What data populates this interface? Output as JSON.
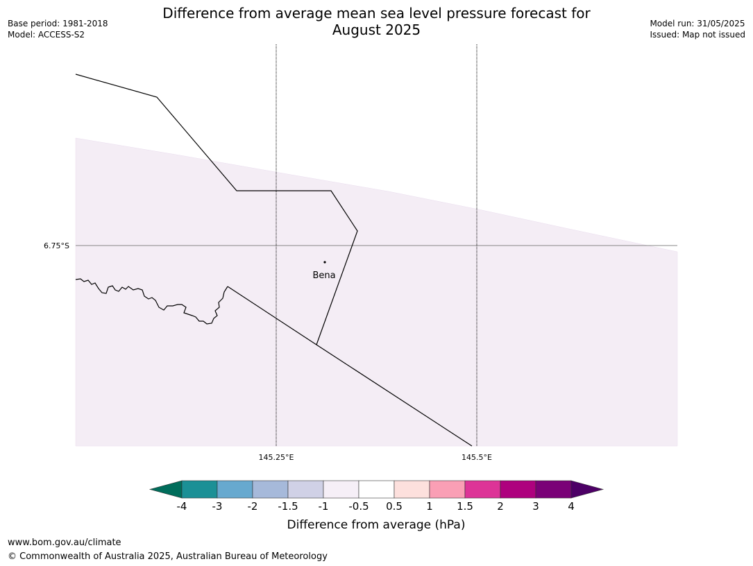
{
  "title": {
    "line1": "Difference from average mean sea level pressure forecast for",
    "line2": "August 2025"
  },
  "meta_left": {
    "base_period": "Base period: 1981-2018",
    "model": "Model: ACCESS-S2"
  },
  "meta_right": {
    "model_run": "Model run: 31/05/2025",
    "issued": "Issued: Map not issued"
  },
  "map": {
    "lat_label": "6.75°S",
    "lon_labels": [
      "145.25°E",
      "145.5°E"
    ],
    "place": "Bena"
  },
  "colorbar": {
    "label": "Difference from average (hPa)",
    "ticks": [
      "-4",
      "-3",
      "-2",
      "-1.5",
      "-1",
      "-0.5",
      "0.5",
      "1",
      "1.5",
      "2",
      "3",
      "4"
    ],
    "below_color": "#006d5b",
    "above_color": "#4d0066",
    "colors": [
      "#1b9096",
      "#67a9cf",
      "#a6b9da",
      "#d0d1e6",
      "#f6eff7",
      "#ffffff",
      "#fde0dd",
      "#fa9fb5",
      "#dd3497",
      "#ae017e",
      "#7a0177"
    ]
  },
  "footer": {
    "url": "www.bom.gov.au/climate",
    "copyright": "© Commonwealth of Australia 2025, Australian Bureau of Meteorology"
  }
}
